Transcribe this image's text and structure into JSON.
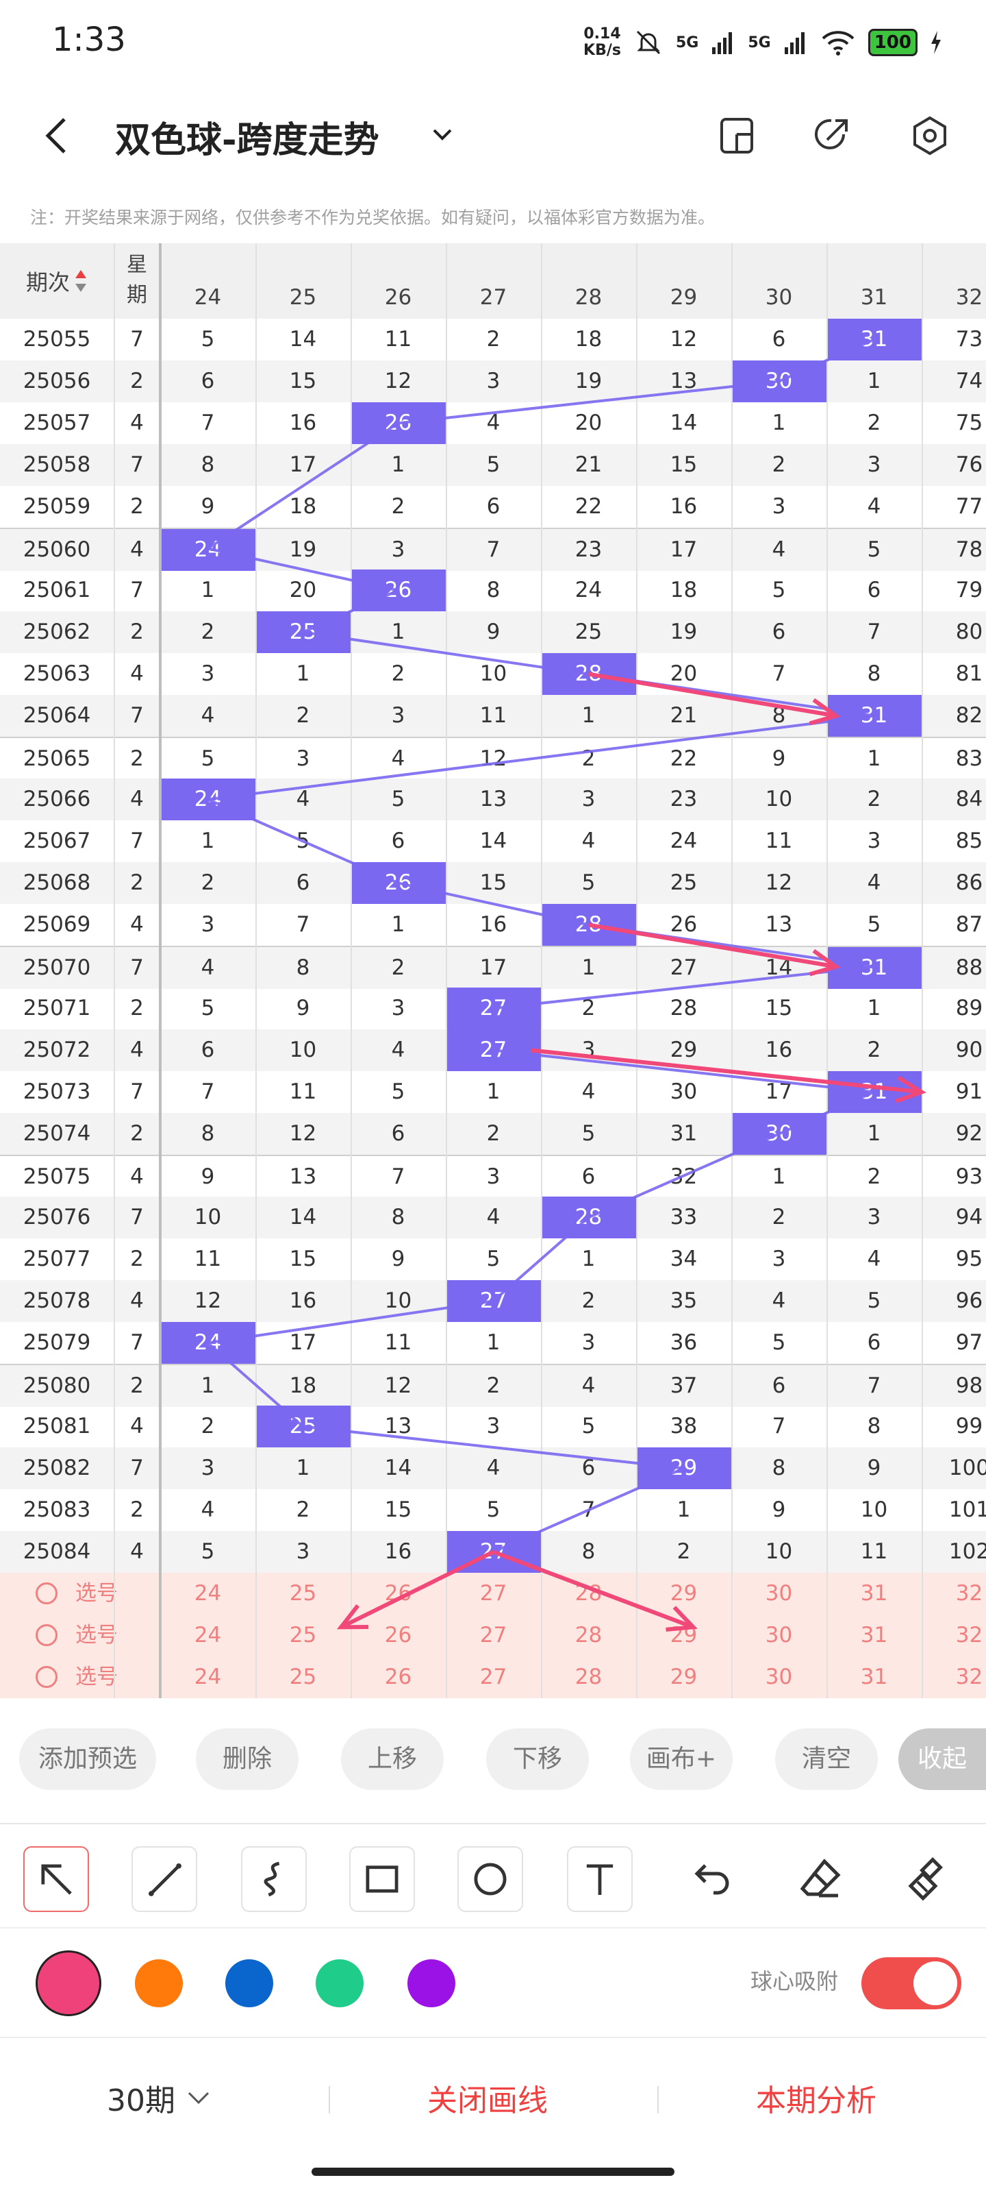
{
  "status": {
    "time": "1:33",
    "net_speed_top": "0.14",
    "net_speed_bottom": "KB/s",
    "sig1": "5G",
    "sig2": "5G",
    "battery": "100"
  },
  "header": {
    "title": "双色球-跨度走势"
  },
  "note": "注：开奖结果来源于网络，仅供参考不作为兑奖依据。如有疑问，以福体彩官方数据为准。",
  "table": {
    "period_header": "期次",
    "week_header_line1": "星",
    "week_header_line2": "期",
    "columns": [
      "24",
      "25",
      "26",
      "27",
      "28",
      "29",
      "30",
      "31",
      "32"
    ],
    "rows": [
      {
        "p": "25055",
        "w": "7",
        "v": [
          "5",
          "14",
          "11",
          "2",
          "18",
          "12",
          "6",
          "31",
          "73"
        ],
        "hit": 7
      },
      {
        "p": "25056",
        "w": "2",
        "v": [
          "6",
          "15",
          "12",
          "3",
          "19",
          "13",
          "30",
          "1",
          "74"
        ],
        "hit": 6
      },
      {
        "p": "25057",
        "w": "4",
        "v": [
          "7",
          "16",
          "26",
          "4",
          "20",
          "14",
          "1",
          "2",
          "75"
        ],
        "hit": 2
      },
      {
        "p": "25058",
        "w": "7",
        "v": [
          "8",
          "17",
          "1",
          "5",
          "21",
          "15",
          "2",
          "3",
          "76"
        ],
        "hit": -1
      },
      {
        "p": "25059",
        "w": "2",
        "v": [
          "9",
          "18",
          "2",
          "6",
          "22",
          "16",
          "3",
          "4",
          "77"
        ],
        "hit": -1
      },
      {
        "p": "25060",
        "w": "4",
        "v": [
          "24",
          "19",
          "3",
          "7",
          "23",
          "17",
          "4",
          "5",
          "78"
        ],
        "hit": 0
      },
      {
        "p": "25061",
        "w": "7",
        "v": [
          "1",
          "20",
          "26",
          "8",
          "24",
          "18",
          "5",
          "6",
          "79"
        ],
        "hit": 2
      },
      {
        "p": "25062",
        "w": "2",
        "v": [
          "2",
          "25",
          "1",
          "9",
          "25",
          "19",
          "6",
          "7",
          "80"
        ],
        "hit": 1
      },
      {
        "p": "25063",
        "w": "4",
        "v": [
          "3",
          "1",
          "2",
          "10",
          "28",
          "20",
          "7",
          "8",
          "81"
        ],
        "hit": 4
      },
      {
        "p": "25064",
        "w": "7",
        "v": [
          "4",
          "2",
          "3",
          "11",
          "1",
          "21",
          "8",
          "31",
          "82"
        ],
        "hit": 7
      },
      {
        "p": "25065",
        "w": "2",
        "v": [
          "5",
          "3",
          "4",
          "12",
          "2",
          "22",
          "9",
          "1",
          "83"
        ],
        "hit": -1
      },
      {
        "p": "25066",
        "w": "4",
        "v": [
          "24",
          "4",
          "5",
          "13",
          "3",
          "23",
          "10",
          "2",
          "84"
        ],
        "hit": 0
      },
      {
        "p": "25067",
        "w": "7",
        "v": [
          "1",
          "5",
          "6",
          "14",
          "4",
          "24",
          "11",
          "3",
          "85"
        ],
        "hit": -1
      },
      {
        "p": "25068",
        "w": "2",
        "v": [
          "2",
          "6",
          "26",
          "15",
          "5",
          "25",
          "12",
          "4",
          "86"
        ],
        "hit": 2
      },
      {
        "p": "25069",
        "w": "4",
        "v": [
          "3",
          "7",
          "1",
          "16",
          "28",
          "26",
          "13",
          "5",
          "87"
        ],
        "hit": 4
      },
      {
        "p": "25070",
        "w": "7",
        "v": [
          "4",
          "8",
          "2",
          "17",
          "1",
          "27",
          "14",
          "31",
          "88"
        ],
        "hit": 7
      },
      {
        "p": "25071",
        "w": "2",
        "v": [
          "5",
          "9",
          "3",
          "27",
          "2",
          "28",
          "15",
          "1",
          "89"
        ],
        "hit": 3
      },
      {
        "p": "25072",
        "w": "4",
        "v": [
          "6",
          "10",
          "4",
          "27",
          "3",
          "29",
          "16",
          "2",
          "90"
        ],
        "hit": 3
      },
      {
        "p": "25073",
        "w": "7",
        "v": [
          "7",
          "11",
          "5",
          "1",
          "4",
          "30",
          "17",
          "31",
          "91"
        ],
        "hit": 7
      },
      {
        "p": "25074",
        "w": "2",
        "v": [
          "8",
          "12",
          "6",
          "2",
          "5",
          "31",
          "30",
          "1",
          "92"
        ],
        "hit": 6
      },
      {
        "p": "25075",
        "w": "4",
        "v": [
          "9",
          "13",
          "7",
          "3",
          "6",
          "32",
          "1",
          "2",
          "93"
        ],
        "hit": -1
      },
      {
        "p": "25076",
        "w": "7",
        "v": [
          "10",
          "14",
          "8",
          "4",
          "28",
          "33",
          "2",
          "3",
          "94"
        ],
        "hit": 4
      },
      {
        "p": "25077",
        "w": "2",
        "v": [
          "11",
          "15",
          "9",
          "5",
          "1",
          "34",
          "3",
          "4",
          "95"
        ],
        "hit": -1
      },
      {
        "p": "25078",
        "w": "4",
        "v": [
          "12",
          "16",
          "10",
          "27",
          "2",
          "35",
          "4",
          "5",
          "96"
        ],
        "hit": 3
      },
      {
        "p": "25079",
        "w": "7",
        "v": [
          "24",
          "17",
          "11",
          "1",
          "3",
          "36",
          "5",
          "6",
          "97"
        ],
        "hit": 0
      },
      {
        "p": "25080",
        "w": "2",
        "v": [
          "1",
          "18",
          "12",
          "2",
          "4",
          "37",
          "6",
          "7",
          "98"
        ],
        "hit": -1
      },
      {
        "p": "25081",
        "w": "4",
        "v": [
          "2",
          "25",
          "13",
          "3",
          "5",
          "38",
          "7",
          "8",
          "99"
        ],
        "hit": 1
      },
      {
        "p": "25082",
        "w": "7",
        "v": [
          "3",
          "1",
          "14",
          "4",
          "6",
          "29",
          "8",
          "9",
          "100"
        ],
        "hit": 5
      },
      {
        "p": "25083",
        "w": "2",
        "v": [
          "4",
          "2",
          "15",
          "5",
          "7",
          "1",
          "9",
          "10",
          "101"
        ],
        "hit": -1
      },
      {
        "p": "25084",
        "w": "4",
        "v": [
          "5",
          "3",
          "16",
          "27",
          "8",
          "2",
          "10",
          "11",
          "102"
        ],
        "hit": 3
      }
    ],
    "select_label": "选号",
    "select_rows": 3
  },
  "actions": [
    "添加预选",
    "删除",
    "上移",
    "下移",
    "画布+",
    "清空",
    "收起"
  ],
  "colors": {
    "swatches": [
      "#f0427a",
      "#ff7a0a",
      "#0a66cc",
      "#1fcc8a",
      "#9b12e6"
    ],
    "highlight": "#7b68f0",
    "line": "#7b68f0",
    "arrow": "#f04878"
  },
  "magnet_label": "球心吸附",
  "footer": {
    "periods": "30期",
    "close_lines": "关闭画线",
    "analysis": "本期分析"
  },
  "icons": [
    "back-icon",
    "chevron-down-icon",
    "tablet-icon",
    "share-icon",
    "settings-icon",
    "pointer-arrow-icon",
    "line-icon",
    "curve-icon",
    "rectangle-icon",
    "circle-icon",
    "text-icon",
    "undo-icon",
    "eraser-icon",
    "clear-brush-icon"
  ]
}
